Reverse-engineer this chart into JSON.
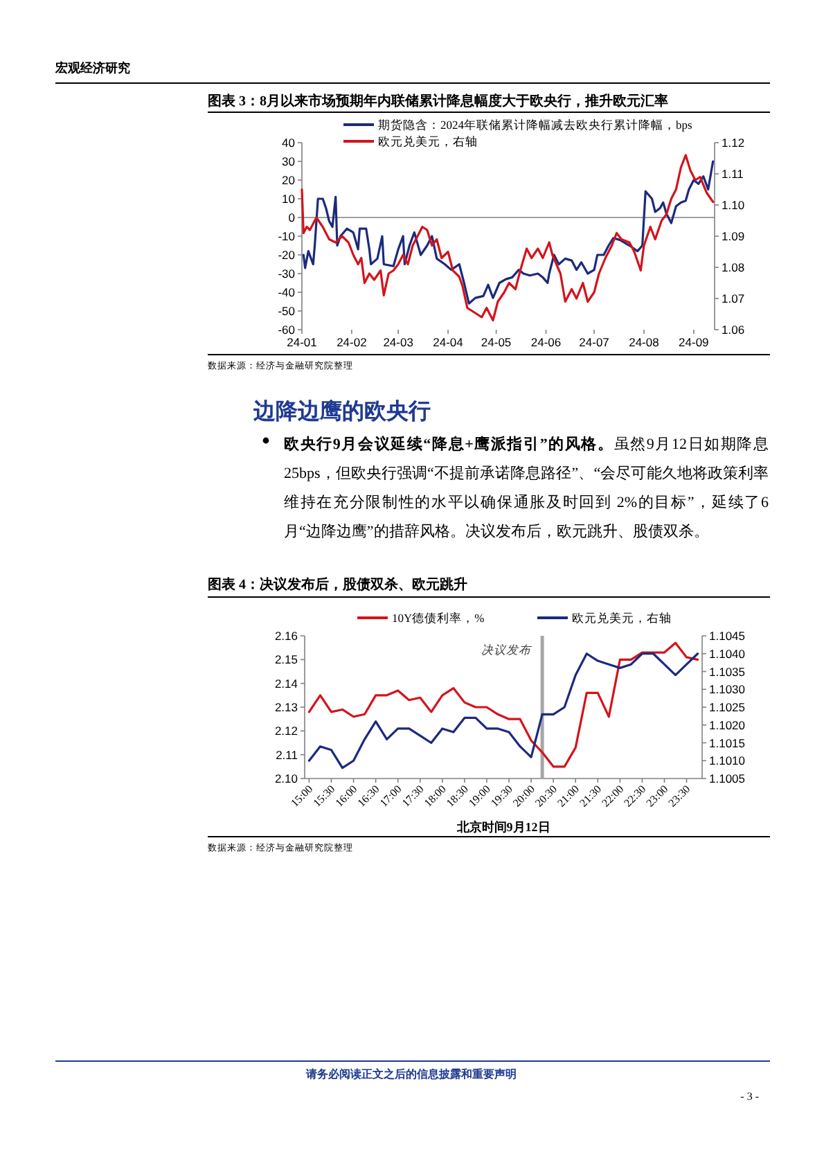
{
  "chart_data": [
    {
      "type": "line",
      "title": "图表 3：8月以来市场预期年内联储累计降息幅度大于欧央行，推升欧元汇率",
      "xlim": [
        "2024-01-01",
        "2024-09-14"
      ],
      "xticks": [
        {
          "value": "2024-01-01",
          "label": "24-01"
        },
        {
          "value": "2024-02-01",
          "label": "24-02"
        },
        {
          "value": "2024-03-01",
          "label": "24-03"
        },
        {
          "value": "2024-04-01",
          "label": "24-04"
        },
        {
          "value": "2024-05-01",
          "label": "24-05"
        },
        {
          "value": "2024-06-01",
          "label": "24-06"
        },
        {
          "value": "2024-07-01",
          "label": "24-07"
        },
        {
          "value": "2024-08-01",
          "label": "24-08"
        },
        {
          "value": "2024-09-01",
          "label": "24-09"
        }
      ],
      "ylim": [
        -60,
        40
      ],
      "yticks": [
        -60,
        -50,
        -40,
        -30,
        -20,
        -10,
        0,
        10,
        20,
        30,
        40
      ],
      "y2lim": [
        1.06,
        1.12
      ],
      "y2ticks": [
        {
          "value": 1.06,
          "label": "1.06"
        },
        {
          "value": 1.07,
          "label": "1.07"
        },
        {
          "value": 1.08,
          "label": "1.08"
        },
        {
          "value": 1.09,
          "label": "1.09"
        },
        {
          "value": 1.1,
          "label": "1.10"
        },
        {
          "value": 1.11,
          "label": "1.11"
        },
        {
          "value": 1.12,
          "label": "1.12"
        }
      ],
      "legend": "top",
      "ref_lines": [
        {
          "axis": "y",
          "value": 0,
          "color": "#808080"
        }
      ],
      "annotations": [
        "宏观经济研究",
        "数据来源：经济与金融研究院整理"
      ],
      "series": [
        {
          "name": "期货隐含：2024年联储累计降幅减去欧央行累计降幅，bps",
          "color": "#1c2a7d",
          "x": [
            "2024-01-02",
            "2024-01-03",
            "2024-01-05",
            "2024-01-08",
            "2024-01-09",
            "2024-01-11",
            "2024-01-14",
            "2024-01-16",
            "2024-01-18",
            "2024-01-20",
            "2024-01-22",
            "2024-01-23",
            "2024-01-25",
            "2024-01-29",
            "2024-02-02",
            "2024-02-05",
            "2024-02-06",
            "2024-02-10",
            "2024-02-12",
            "2024-02-13",
            "2024-02-17",
            "2024-02-20",
            "2024-02-21",
            "2024-02-27",
            "2024-03-01",
            "2024-03-04",
            "2024-03-05",
            "2024-03-08",
            "2024-03-11",
            "2024-03-15",
            "2024-03-19",
            "2024-03-22",
            "2024-03-25",
            "2024-03-30",
            "2024-04-03",
            "2024-04-08",
            "2024-04-11",
            "2024-04-14",
            "2024-04-18",
            "2024-04-23",
            "2024-04-26",
            "2024-04-29",
            "2024-05-03",
            "2024-05-07",
            "2024-05-11",
            "2024-05-15",
            "2024-05-18",
            "2024-05-22",
            "2024-05-27",
            "2024-05-30",
            "2024-06-02",
            "2024-06-03",
            "2024-06-06",
            "2024-06-09",
            "2024-06-13",
            "2024-06-17",
            "2024-06-20",
            "2024-06-23",
            "2024-06-27",
            "2024-07-01",
            "2024-07-03",
            "2024-07-07",
            "2024-07-10",
            "2024-07-13",
            "2024-07-17",
            "2024-07-23",
            "2024-07-28",
            "2024-07-31",
            "2024-08-02",
            "2024-08-06",
            "2024-08-08",
            "2024-08-11",
            "2024-08-13",
            "2024-08-15",
            "2024-08-18",
            "2024-08-21",
            "2024-08-24",
            "2024-08-27",
            "2024-08-29",
            "2024-09-01",
            "2024-09-04",
            "2024-09-07",
            "2024-09-10",
            "2024-09-11",
            "2024-09-13"
          ],
          "values": [
            -20,
            -27,
            -18,
            -25,
            -15,
            10,
            10,
            5,
            -2,
            -5,
            11,
            -15,
            -10,
            -6,
            -8,
            -17,
            -6,
            -6,
            -17,
            -25,
            -22,
            -10,
            -25,
            -26,
            -17,
            -10,
            -25,
            -15,
            -8,
            -20,
            -15,
            -10,
            -22,
            -25,
            -28,
            -25,
            -35,
            -46,
            -43,
            -42,
            -36,
            -43,
            -35,
            -33,
            -32,
            -28,
            -30,
            -31,
            -30,
            -32,
            -35,
            -30,
            -20,
            -25,
            -22,
            -23,
            -28,
            -24,
            -30,
            -28,
            -20,
            -20,
            -15,
            -11,
            -12,
            -15,
            -18,
            -15,
            14,
            10,
            3,
            5,
            8,
            2,
            -3,
            6,
            8,
            9,
            15,
            20,
            18,
            22,
            15,
            20,
            30
          ]
        },
        {
          "name": "欧元兑美元，右轴",
          "color": "#d3141c",
          "axis": "y2",
          "x": [
            "2024-01-01",
            "2024-01-02",
            "2024-01-04",
            "2024-01-06",
            "2024-01-10",
            "2024-01-14",
            "2024-01-18",
            "2024-01-22",
            "2024-01-26",
            "2024-01-30",
            "2024-02-02",
            "2024-02-05",
            "2024-02-07",
            "2024-02-09",
            "2024-02-12",
            "2024-02-15",
            "2024-02-19",
            "2024-02-21",
            "2024-02-24",
            "2024-02-27",
            "2024-03-01",
            "2024-03-04",
            "2024-03-07",
            "2024-03-10",
            "2024-03-13",
            "2024-03-16",
            "2024-03-19",
            "2024-03-22",
            "2024-03-25",
            "2024-03-28",
            "2024-04-01",
            "2024-04-04",
            "2024-04-08",
            "2024-04-10",
            "2024-04-13",
            "2024-04-16",
            "2024-04-19",
            "2024-04-22",
            "2024-04-25",
            "2024-04-29",
            "2024-05-02",
            "2024-05-06",
            "2024-05-09",
            "2024-05-13",
            "2024-05-16",
            "2024-05-20",
            "2024-05-23",
            "2024-05-27",
            "2024-05-30",
            "2024-06-03",
            "2024-06-05",
            "2024-06-10",
            "2024-06-13",
            "2024-06-17",
            "2024-06-20",
            "2024-06-24",
            "2024-06-27",
            "2024-07-01",
            "2024-07-04",
            "2024-07-08",
            "2024-07-12",
            "2024-07-15",
            "2024-07-18",
            "2024-07-23",
            "2024-07-26",
            "2024-07-30",
            "2024-08-01",
            "2024-08-05",
            "2024-08-08",
            "2024-08-12",
            "2024-08-15",
            "2024-08-18",
            "2024-08-21",
            "2024-08-24",
            "2024-08-27",
            "2024-08-30",
            "2024-09-02",
            "2024-09-05",
            "2024-09-09",
            "2024-09-13"
          ],
          "values": [
            1.105,
            1.091,
            1.093,
            1.092,
            1.096,
            1.093,
            1.089,
            1.088,
            1.09,
            1.088,
            1.084,
            1.081,
            1.083,
            1.075,
            1.078,
            1.076,
            1.079,
            1.071,
            1.078,
            1.079,
            1.081,
            1.084,
            1.081,
            1.087,
            1.09,
            1.093,
            1.092,
            1.087,
            1.089,
            1.083,
            1.085,
            1.079,
            1.077,
            1.074,
            1.067,
            1.066,
            1.065,
            1.064,
            1.067,
            1.063,
            1.069,
            1.072,
            1.075,
            1.073,
            1.079,
            1.086,
            1.083,
            1.086,
            1.083,
            1.088,
            1.084,
            1.078,
            1.069,
            1.073,
            1.07,
            1.075,
            1.069,
            1.072,
            1.078,
            1.083,
            1.087,
            1.091,
            1.089,
            1.088,
            1.085,
            1.079,
            1.087,
            1.093,
            1.089,
            1.095,
            1.097,
            1.102,
            1.105,
            1.112,
            1.116,
            1.111,
            1.108,
            1.109,
            1.104,
            1.101
          ]
        }
      ]
    },
    {
      "type": "line",
      "title": "图表 4：决议发布后，股债双杀、欧元跳升",
      "xlabel": "北京时间9月12日",
      "x": [
        15,
        15.25,
        15.5,
        15.75,
        16,
        16.25,
        16.5,
        16.75,
        17,
        17.25,
        17.5,
        17.75,
        18,
        18.25,
        18.5,
        18.75,
        19,
        19.25,
        19.5,
        19.75,
        20,
        20.25,
        20.5,
        20.75,
        21,
        21.25,
        21.5,
        21.75,
        22,
        22.25,
        22.5,
        22.75,
        23,
        23.25,
        23.5,
        23.75
      ],
      "xlim": [
        14.9,
        23.85
      ],
      "xticks": [
        {
          "value": 15,
          "label": "15:00"
        },
        {
          "value": 15.5,
          "label": "15:30"
        },
        {
          "value": 16,
          "label": "16:00"
        },
        {
          "value": 16.5,
          "label": "16:30"
        },
        {
          "value": 17,
          "label": "17:00"
        },
        {
          "value": 17.5,
          "label": "17:30"
        },
        {
          "value": 18,
          "label": "18:00"
        },
        {
          "value": 18.5,
          "label": "18:30"
        },
        {
          "value": 19,
          "label": "19:00"
        },
        {
          "value": 19.5,
          "label": "19:30"
        },
        {
          "value": 20,
          "label": "20:00"
        },
        {
          "value": 20.5,
          "label": "20:30"
        },
        {
          "value": 21,
          "label": "21:00"
        },
        {
          "value": 21.5,
          "label": "21:30"
        },
        {
          "value": 22,
          "label": "22:00"
        },
        {
          "value": 22.5,
          "label": "22:30"
        },
        {
          "value": 23,
          "label": "23:00"
        },
        {
          "value": 23.5,
          "label": "23:30"
        }
      ],
      "ylim": [
        2.1,
        2.16
      ],
      "yticks": [
        {
          "value": 2.1,
          "label": "2.10"
        },
        2.11,
        2.12,
        2.13,
        2.14,
        2.15,
        2.16
      ],
      "y2lim": [
        1.1005,
        1.1045
      ],
      "y2ticks": [
        1.1005,
        {
          "value": 1.101,
          "label": "1.1010"
        },
        1.1015,
        {
          "value": 1.102,
          "label": "1.1020"
        },
        1.1025,
        {
          "value": 1.103,
          "label": "1.1030"
        },
        1.1035,
        {
          "value": 1.104,
          "label": "1.1040"
        },
        1.1045
      ],
      "legend": "top",
      "ref_lines": [
        {
          "axis": "x",
          "value": 20.25,
          "label": "决议发布",
          "color": "#a6a6a6"
        }
      ],
      "annotations": [
        "边降边鹰的欧央行",
        "欧央行9月会议延续“降息+鹰派指引”的风格。",
        "虽然9月12日如期降息25bps，但欧央行强调“不提前承诺降息路径”、“会尽可能久地将政策利率维持在充分限制性的水平以确保通胀及时回到 2%的目标”，延续了6月“边降边鹰”的措辞风格。决议发布后，欧元跳升、股债双杀。",
        "数据来源：经济与金融研究院整理",
        "请务必阅读正文之后的信息披露和重要声明",
        "- 3 -"
      ],
      "series": [
        {
          "name": "10Y德债利率，%",
          "color": "#d3141c",
          "values": [
            2.128,
            2.135,
            2.128,
            2.129,
            2.126,
            2.127,
            2.135,
            2.135,
            2.137,
            2.133,
            2.134,
            2.128,
            2.135,
            2.138,
            2.132,
            2.13,
            2.13,
            2.127,
            2.125,
            2.125,
            2.116,
            2.111,
            2.105,
            2.105,
            2.113,
            2.136,
            2.136,
            2.126,
            2.15,
            2.15,
            2.153,
            2.153,
            2.153,
            2.157,
            2.151,
            2.15
          ]
        },
        {
          "name": "欧元兑美元，右轴",
          "color": "#1c2a7d",
          "axis": "y2",
          "values": [
            1.101,
            1.1014,
            1.1013,
            1.1008,
            1.101,
            1.1016,
            1.1021,
            1.1016,
            1.1019,
            1.1019,
            1.1017,
            1.1015,
            1.1019,
            1.1018,
            1.1022,
            1.1022,
            1.1019,
            1.1019,
            1.1018,
            1.1014,
            1.1011,
            1.1023,
            1.1023,
            1.1025,
            1.1034,
            1.104,
            1.1038,
            1.1037,
            1.1036,
            1.1037,
            1.104,
            1.104,
            1.1037,
            1.1034,
            1.1037,
            1.104
          ]
        }
      ]
    }
  ]
}
